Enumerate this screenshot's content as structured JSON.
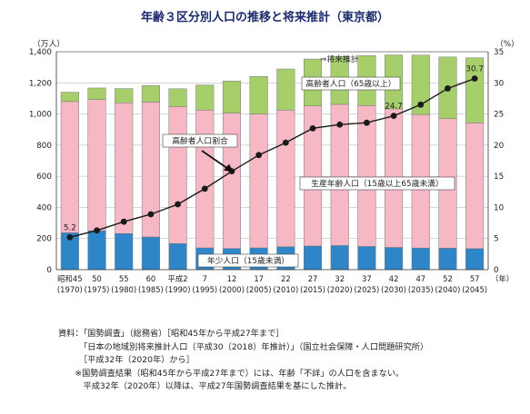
{
  "chart_data": {
    "type": "bar",
    "title": "年齢３区分別人口の推移と将来推計（東京都）",
    "left_axis_unit": "（万人）",
    "right_axis_unit": "（%）",
    "x_unit": "（年）",
    "ylim_left": [
      0,
      1400
    ],
    "ylim_right": [
      0,
      35
    ],
    "left_ticks": [
      "0",
      "200",
      "400",
      "600",
      "800",
      "1,000",
      "1,200",
      "1,400"
    ],
    "right_ticks": [
      "0",
      "5",
      "10",
      "15",
      "20",
      "25",
      "30",
      "35"
    ],
    "categories": [
      {
        "era": "昭和45",
        "year": "(1970)"
      },
      {
        "era": "50",
        "year": "(1975)"
      },
      {
        "era": "55",
        "year": "(1980)"
      },
      {
        "era": "60",
        "year": "(1985)"
      },
      {
        "era": "平成2",
        "year": "(1990)"
      },
      {
        "era": "7",
        "year": "(1995)"
      },
      {
        "era": "12",
        "year": "(2000)"
      },
      {
        "era": "17",
        "year": "(2005)"
      },
      {
        "era": "22",
        "year": "(2010)"
      },
      {
        "era": "27",
        "year": "(2015)"
      },
      {
        "era": "32",
        "year": "(2020)"
      },
      {
        "era": "37",
        "year": "(2025)"
      },
      {
        "era": "42",
        "year": "(2030)"
      },
      {
        "era": "47",
        "year": "(2035)"
      },
      {
        "era": "52",
        "year": "(2040)"
      },
      {
        "era": "57",
        "year": "(2045)"
      }
    ],
    "series": [
      {
        "name": "年少人口（15歳未満）",
        "kind": "bar",
        "color": "#2e86c8",
        "values": [
          237,
          250,
          232,
          210,
          168,
          140,
          136,
          140,
          147,
          152,
          155,
          149,
          143,
          139,
          138,
          135
        ]
      },
      {
        "name": "生産年齢人口（15歳以上65歳未満）",
        "kind": "bar",
        "color": "#f7b8c6",
        "values": [
          843,
          843,
          840,
          867,
          880,
          885,
          870,
          860,
          878,
          900,
          907,
          905,
          890,
          858,
          832,
          808
        ]
      },
      {
        "name": "高齢者人口（65歳以上）",
        "kind": "bar",
        "color": "#a6cf6b",
        "values": [
          60,
          74,
          91,
          105,
          114,
          161,
          206,
          241,
          264,
          301,
          308,
          321,
          346,
          381,
          396,
          418
        ]
      },
      {
        "name": "高齢者人口割合",
        "kind": "line",
        "axis": "right",
        "color": "#1a1a1a",
        "values": [
          5.2,
          6.3,
          7.7,
          8.9,
          10.5,
          13.0,
          15.8,
          18.4,
          20.4,
          22.7,
          23.3,
          23.6,
          24.7,
          26.5,
          29.1,
          30.7
        ]
      }
    ],
    "data_labels": [
      "5.2",
      "24.7",
      "30.7"
    ],
    "forecast_label": "⇒将来推計",
    "grid": true,
    "callouts": {
      "elderly": "高齢者人口（65歳以上）",
      "working": "生産年齢人口（15歳以上65歳未満）",
      "young": "年少人口（15歳未満）",
      "ratio": "高齢者人口割合"
    }
  },
  "notes": [
    "資料：「国勢調査」（総務省）［昭和45年から平成27年まで］",
    "　　　「日本の地域別将来推計人口（平成30（2018）年推計）」（国立社会保障・人口問題研究所）",
    "　　　［平成32年（2020年）から］",
    "　　※国勢調査結果（昭和45年から平成27年まで）には、年齢「不詳」の人口を含まない。",
    "　　　平成32年（2020年）以降は、平成27年国勢調査結果を基にした推計。"
  ]
}
